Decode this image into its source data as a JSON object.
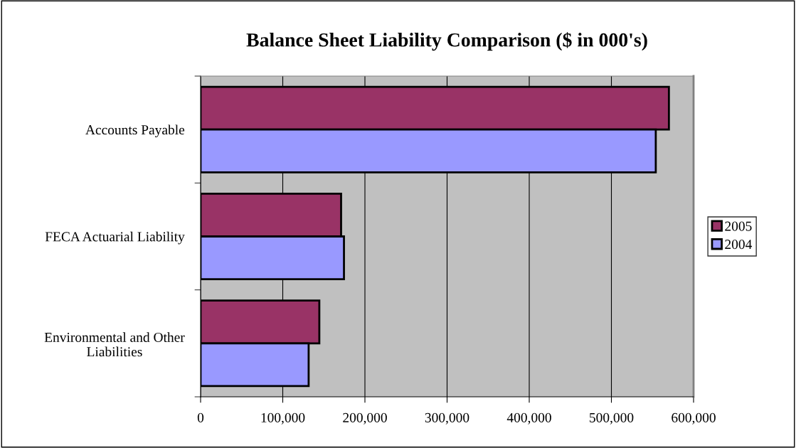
{
  "chart_data": {
    "type": "bar",
    "orientation": "horizontal",
    "title": "Balance Sheet Liability Comparison ($ in 000's)",
    "categories": [
      "Accounts Payable",
      "FECA Actuarial Liability",
      "Environmental and Other\nLiabilities"
    ],
    "series": [
      {
        "name": "2005",
        "color": "#993366",
        "values": [
          570000,
          171000,
          144500
        ]
      },
      {
        "name": "2004",
        "color": "#9999ff",
        "values": [
          554000,
          174500,
          131500
        ]
      }
    ],
    "xlim": [
      0,
      600000
    ],
    "xticks": [
      {
        "value": 0,
        "label": "0"
      },
      {
        "value": 100000,
        "label": "100,000"
      },
      {
        "value": 200000,
        "label": "200,000"
      },
      {
        "value": 300000,
        "label": "300,000"
      },
      {
        "value": 400000,
        "label": "400,000"
      },
      {
        "value": 500000,
        "label": "500,000"
      },
      {
        "value": 600000,
        "label": "600,000"
      }
    ],
    "grid": "x",
    "legend": "right"
  }
}
